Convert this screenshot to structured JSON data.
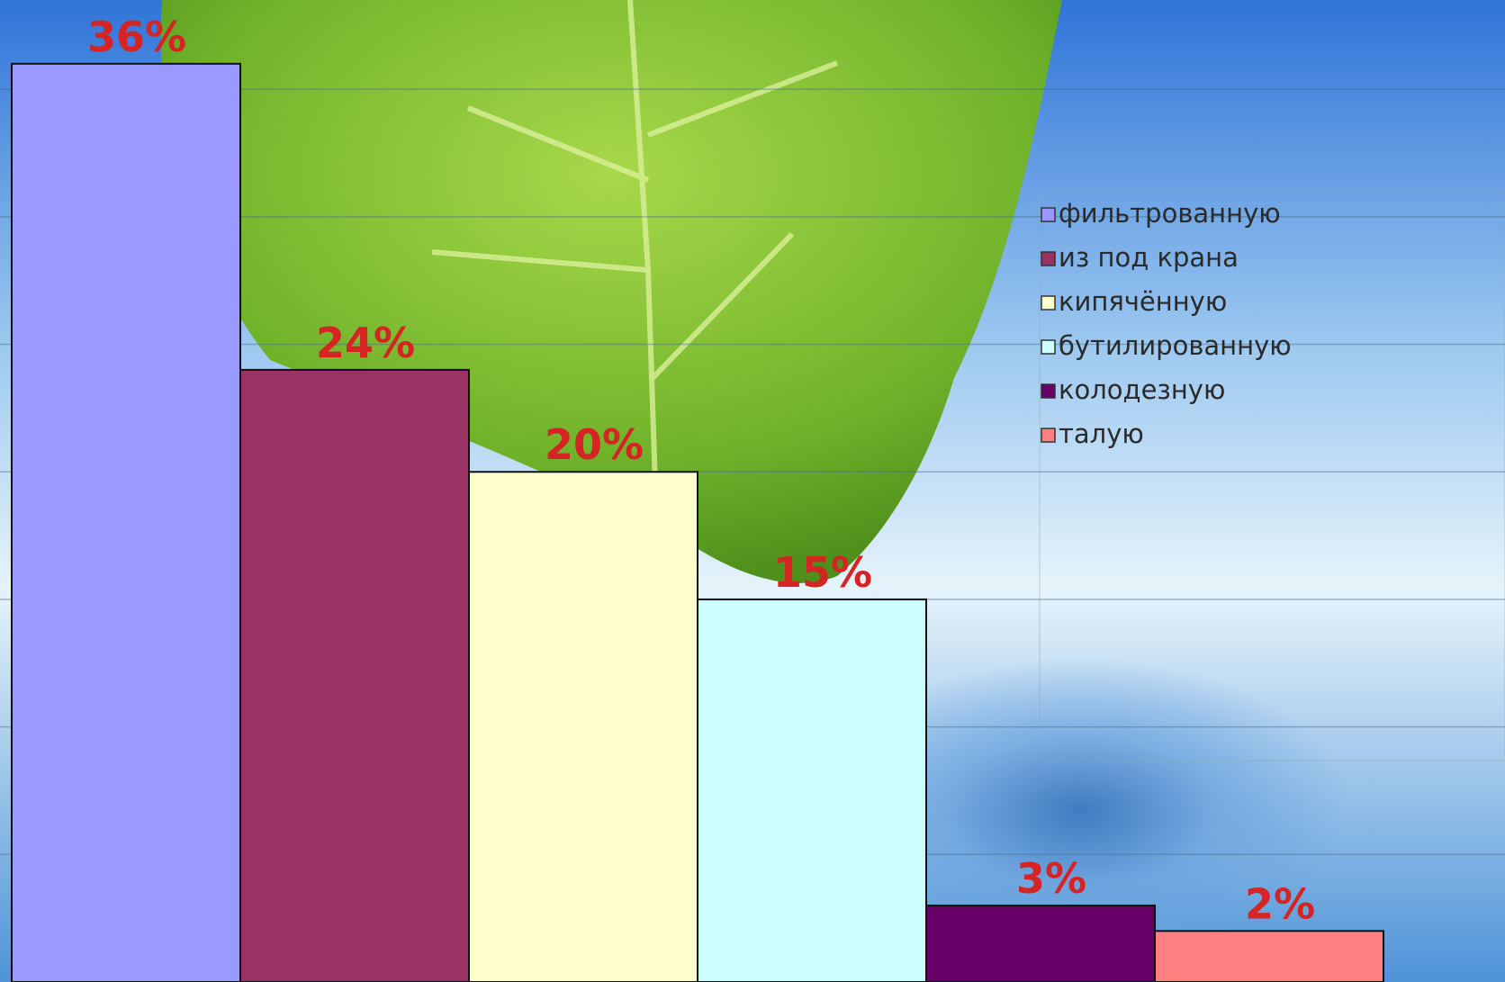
{
  "chart_data": {
    "type": "bar",
    "series": [
      {
        "name": "фильтрованную",
        "color": "#9999ff",
        "values": [
          36
        ],
        "value_labels": [
          "36%"
        ]
      },
      {
        "name": "из под крана",
        "color": "#993366",
        "values": [
          24
        ],
        "value_labels": [
          "24%"
        ]
      },
      {
        "name": "кипячённую",
        "color": "#ffffcc",
        "values": [
          20
        ],
        "value_labels": [
          "20%"
        ]
      },
      {
        "name": "бутилированную",
        "color": "#ccffff",
        "values": [
          15
        ],
        "value_labels": [
          "15%"
        ]
      },
      {
        "name": "колодезную",
        "color": "#660066",
        "values": [
          3
        ],
        "value_labels": [
          "3%"
        ]
      },
      {
        "name": "талую",
        "color": "#ff8080",
        "values": [
          2
        ],
        "value_labels": [
          "2%"
        ]
      }
    ],
    "ylim": [
      0,
      38.5
    ],
    "yticks": [
      5,
      10,
      15,
      20,
      25,
      30,
      35
    ],
    "grid": true,
    "legend": "right"
  }
}
